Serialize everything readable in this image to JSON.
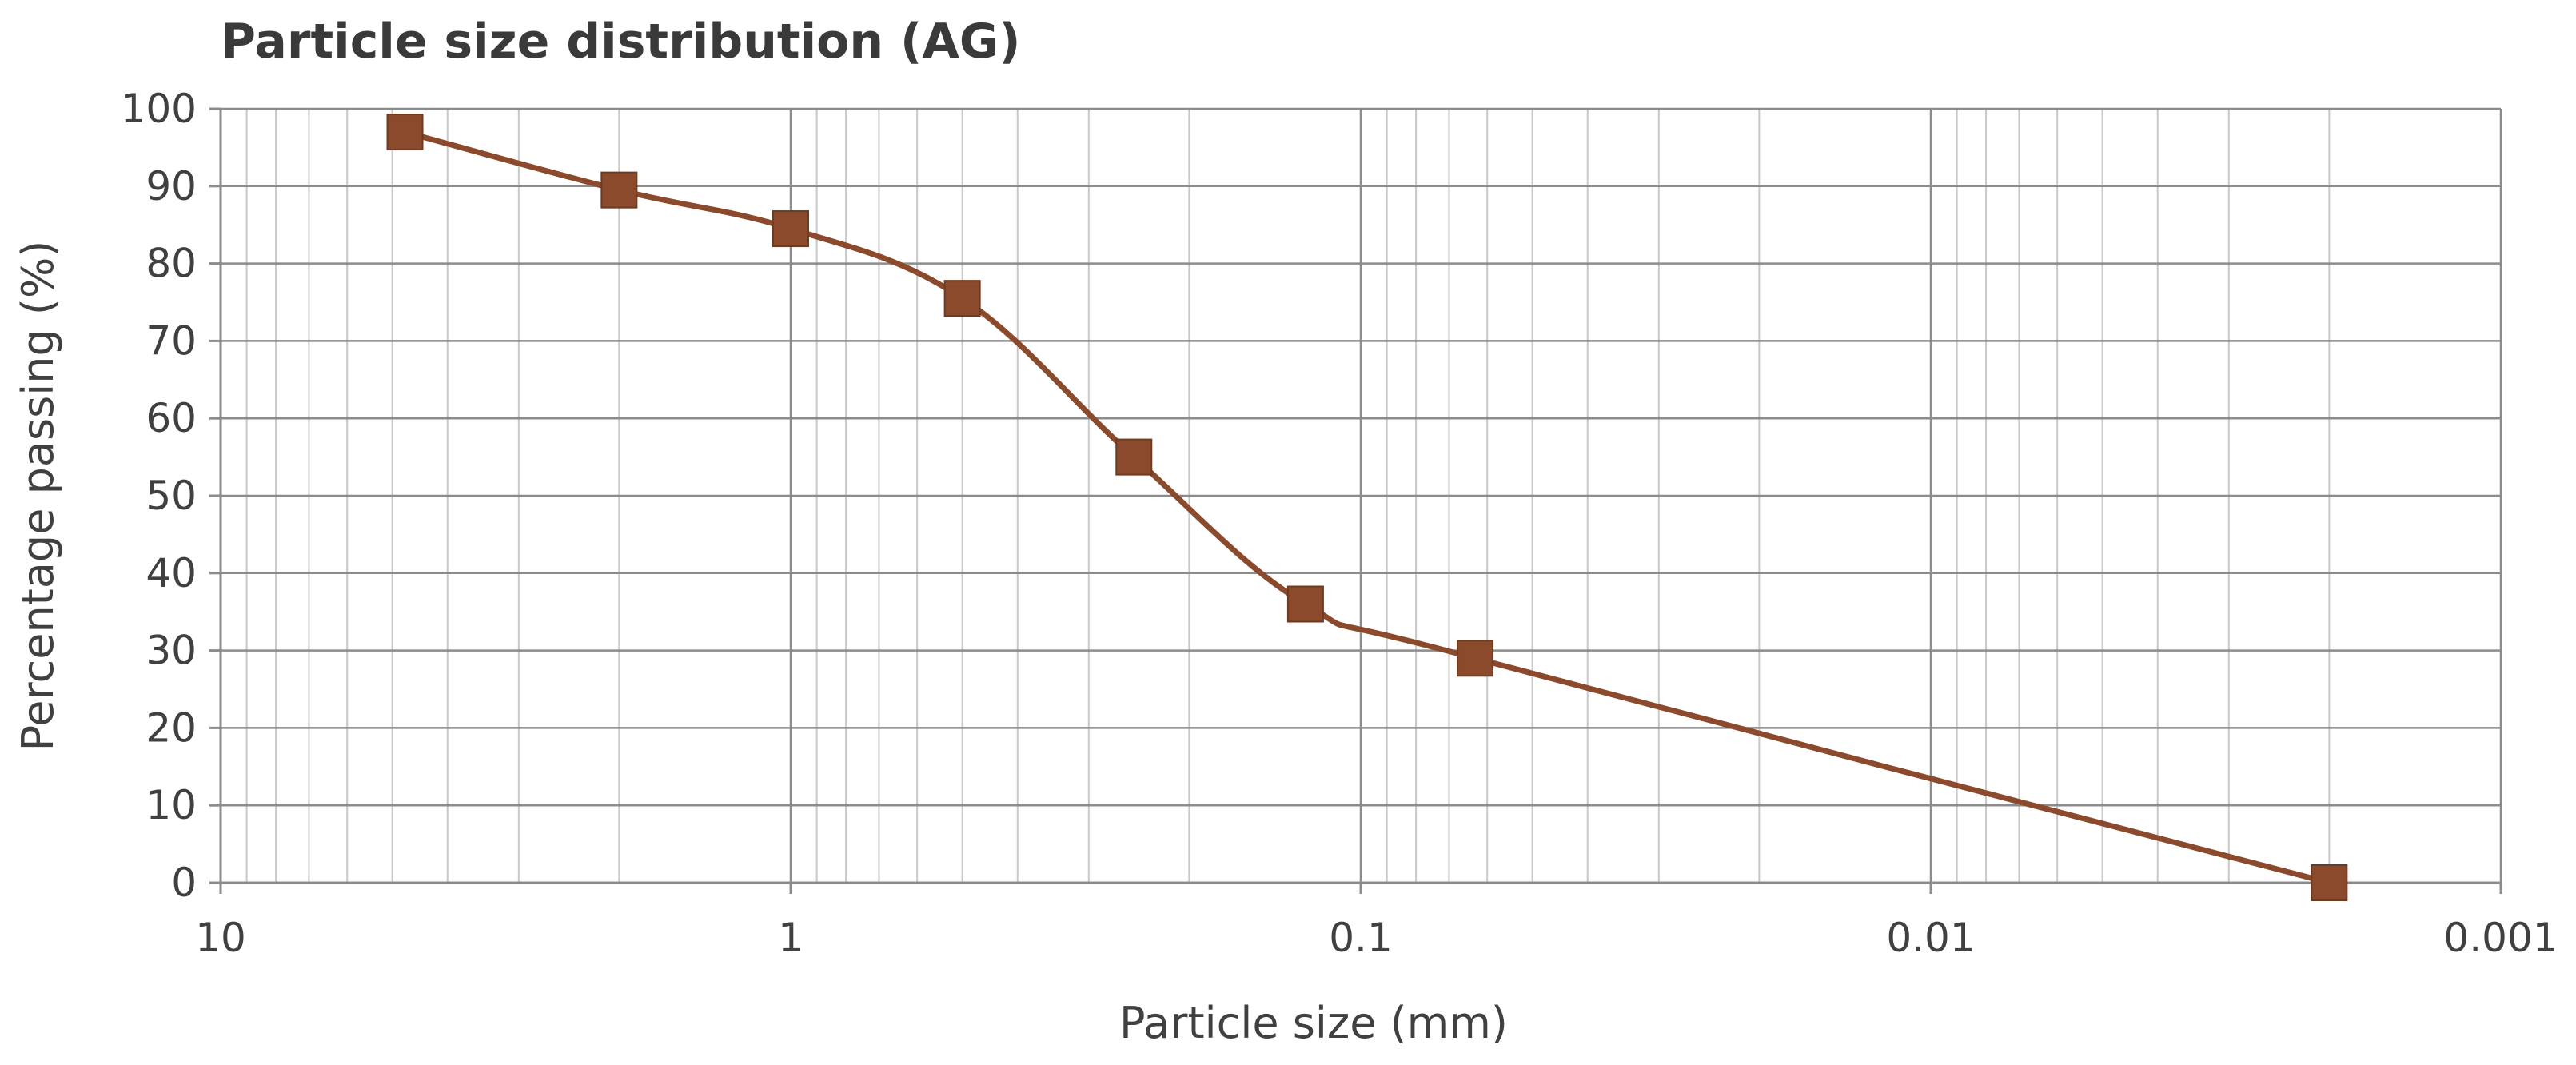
{
  "chart_data": {
    "type": "line",
    "title": "Particle size distribution (AG)",
    "xlabel": "Particle size (mm)",
    "ylabel": "Percentage passing (%)",
    "x_scale": "log",
    "x_reversed": true,
    "xlim": [
      10,
      0.001
    ],
    "ylim": [
      0,
      100
    ],
    "x_ticks": [
      10,
      1,
      0.1,
      0.01,
      0.001
    ],
    "x_tick_labels": [
      "10",
      "1",
      "0.1",
      "0.01",
      "0.001"
    ],
    "y_ticks": [
      0,
      10,
      20,
      30,
      40,
      50,
      60,
      70,
      80,
      90,
      100
    ],
    "y_tick_labels": [
      "0",
      "10",
      "20",
      "30",
      "40",
      "50",
      "60",
      "70",
      "80",
      "90",
      "100"
    ],
    "grid": true,
    "minor_grid": true,
    "legend": false,
    "series": [
      {
        "color": "#8b4a2b",
        "marker": "square",
        "smooth": true,
        "x": [
          4.75,
          2,
          1,
          0.5,
          0.25,
          0.125,
          0.063,
          0.002
        ],
        "y": [
          97,
          89.5,
          84.5,
          75.5,
          55,
          36,
          29,
          0
        ]
      }
    ]
  }
}
